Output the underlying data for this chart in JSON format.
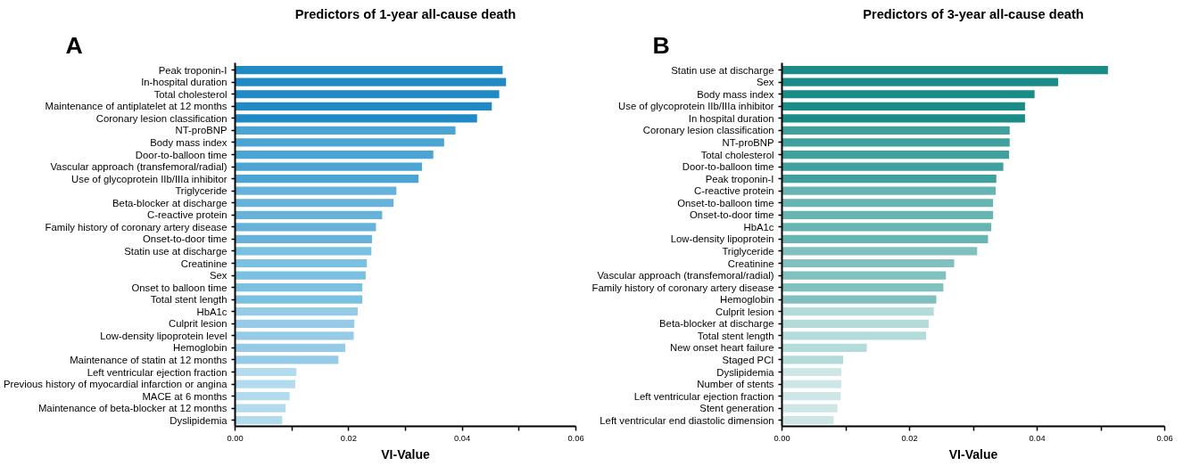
{
  "chart_data": [
    {
      "type": "bar",
      "orientation": "horizontal",
      "title": "Predictors of 1-year all-cause death",
      "xlabel": "VI-Value",
      "annotations": [
        "A"
      ],
      "categories": [
        "Peak troponin-I",
        "In-hospital duration",
        "Total cholesterol",
        "Maintenance of antiplatelet at 12 months",
        "Coronary lesion classification",
        "NT-proBNP",
        "Body mass index",
        "Door-to-balloon time",
        "Vascular approach (transfemoral/radial)",
        "Use of glycoprotein IIb/IIIa inhibitor",
        "Triglyceride",
        "Beta-blocker at discharge",
        "C-reactive protein",
        "Family history of coronary artery disease",
        "Onset-to-door time",
        "Statin use at discharge",
        "Creatinine",
        "Sex",
        "Onset to balloon time",
        "Total stent length",
        "HbA1c",
        "Culprit lesion",
        "Low-density lipoprotein level",
        "Hemoglobin",
        "Maintenance of statin at 12 months",
        "Left ventricular ejection fraction",
        "Previous history of myocardial infarction or angina",
        "MACE at 6 months",
        "Maintenance of beta-blocker at 12 months",
        "Dyslipidemia"
      ],
      "values": [
        0.0471,
        0.0477,
        0.0465,
        0.0452,
        0.0426,
        0.0388,
        0.0368,
        0.0349,
        0.0329,
        0.0323,
        0.0284,
        0.0279,
        0.0259,
        0.0248,
        0.0241,
        0.024,
        0.0232,
        0.023,
        0.0224,
        0.0224,
        0.0216,
        0.021,
        0.0209,
        0.0194,
        0.0182,
        0.0108,
        0.0106,
        0.0096,
        0.0089,
        0.0083
      ],
      "colors": [
        "#1f8ac6",
        "#1f8ac6",
        "#1f8ac6",
        "#1f8ac6",
        "#1f8ac6",
        "#4aa5d5",
        "#4aa5d5",
        "#4aa5d5",
        "#4aa5d5",
        "#4aa5d5",
        "#66b2da",
        "#66b2da",
        "#66b2da",
        "#66b2da",
        "#66b2da",
        "#7ac0e0",
        "#7ac0e0",
        "#7ac0e0",
        "#7ac0e0",
        "#7ac0e0",
        "#96cbe8",
        "#96cbe8",
        "#96cbe8",
        "#96cbe8",
        "#96cbe8",
        "#b3dbee",
        "#b3dbee",
        "#b3dbee",
        "#b3dbee",
        "#b3dbee"
      ],
      "xlim": [
        0,
        0.06
      ],
      "xticks": [
        {
          "value": 0,
          "label": "0.00"
        },
        {
          "value": 0.01,
          "label": null
        },
        {
          "value": 0.02,
          "label": "0.02"
        },
        {
          "value": 0.03,
          "label": null
        },
        {
          "value": 0.04,
          "label": "0.04"
        },
        {
          "value": 0.05,
          "label": null
        },
        {
          "value": 0.06,
          "label": "0.06"
        }
      ]
    },
    {
      "type": "bar",
      "orientation": "horizontal",
      "title": "Predictors of 3-year all-cause death",
      "xlabel": "VI-Value",
      "annotations": [
        "B"
      ],
      "categories": [
        "Statin use at discharge",
        "Sex",
        "Body mass index",
        "Use of glycoprotein IIb/IIIa inhibitor",
        "In hospital duration",
        "Coronary lesion classification",
        "NT-proBNP",
        "Total cholesterol",
        "Door-to-balloon time",
        "Peak troponin-I",
        "C-reactive protein",
        "Onset-to-balloon time",
        "Onset-to-door time",
        "HbA1c",
        "Low-density lipoprotein",
        "Triglyceride",
        "Creatinine",
        "Vascular approach (transfemoral/radial)",
        "Family history of coronary artery disease",
        "Hemoglobin",
        "Culprit lesion",
        "Beta-blocker at discharge",
        "Total stent length",
        "New onset heart failure",
        "Staged PCI",
        "Dyslipidemia",
        "Number of stents",
        "Left ventricular ejection fraction",
        "Stent generation",
        "Left ventricular end diastolic dimension"
      ],
      "values": [
        0.0511,
        0.0433,
        0.0396,
        0.0381,
        0.0381,
        0.0357,
        0.0357,
        0.0356,
        0.0347,
        0.0336,
        0.0335,
        0.0331,
        0.0331,
        0.0328,
        0.0323,
        0.0306,
        0.027,
        0.0257,
        0.0253,
        0.0242,
        0.0238,
        0.023,
        0.0226,
        0.0133,
        0.0096,
        0.0093,
        0.0093,
        0.0092,
        0.0087,
        0.0081
      ],
      "colors": [
        "#1a8c88",
        "#1a8c88",
        "#1a8c88",
        "#1a8c88",
        "#1a8c88",
        "#3fa09d",
        "#3fa09d",
        "#3fa09d",
        "#3fa09d",
        "#3fa09d",
        "#66b5b3",
        "#66b5b3",
        "#66b5b3",
        "#66b5b3",
        "#66b5b3",
        "#80c0bf",
        "#80c0bf",
        "#80c0bf",
        "#80c0bf",
        "#80c0bf",
        "#b3dbda",
        "#b3dbda",
        "#b3dbda",
        "#b3dbda",
        "#b3dbda",
        "#cfe6e6",
        "#cfe6e6",
        "#cfe6e6",
        "#cfe6e6",
        "#cfe6e6"
      ],
      "xlim": [
        0,
        0.06
      ],
      "xticks": [
        {
          "value": 0,
          "label": "0.00"
        },
        {
          "value": 0.01,
          "label": null
        },
        {
          "value": 0.02,
          "label": "0.02"
        },
        {
          "value": 0.03,
          "label": null
        },
        {
          "value": 0.04,
          "label": "0.04"
        },
        {
          "value": 0.05,
          "label": null
        },
        {
          "value": 0.06,
          "label": "0.06"
        }
      ]
    }
  ]
}
